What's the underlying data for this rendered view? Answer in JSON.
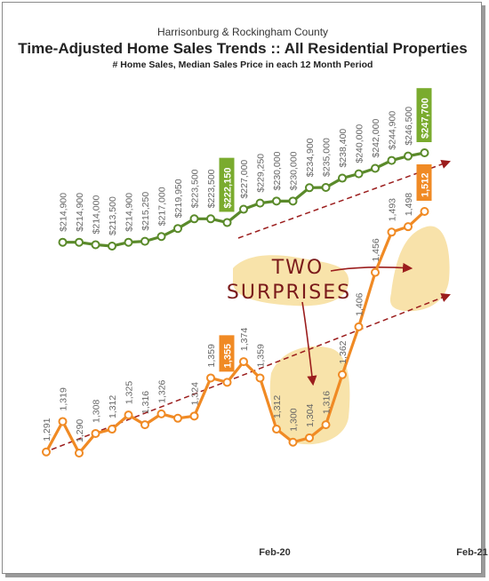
{
  "header": {
    "supertitle": "Harrisonburg & Rockingham County",
    "title": "Time-Adjusted Home Sales Trends  ::  All Residential Properties",
    "subtitle": "# Home Sales, Median Sales Price in each 12 Month Period"
  },
  "annotation": {
    "line1": "TWO",
    "line2": "SURPRISES"
  },
  "colors": {
    "price": "#5a8a2a",
    "price_badge": "#7aab2e",
    "sales": "#f08a24",
    "arrows": "#9b1d1d",
    "highlight": "#f6d98e"
  },
  "chart_data": {
    "type": "line",
    "x_labels": [
      {
        "index": 14,
        "label": "Feb-20"
      },
      {
        "index": 26,
        "label": "Feb-21"
      }
    ],
    "series": [
      {
        "metric": "median_sales_price",
        "values": [
          214900,
          214900,
          214000,
          213500,
          214900,
          215250,
          217000,
          219950,
          223500,
          223500,
          222150,
          227000,
          229250,
          230000,
          230000,
          234900,
          235000,
          238400,
          240000,
          242000,
          244900,
          246500,
          247700
        ],
        "labels": [
          "$214,900",
          "$214,900",
          "$214,000",
          "$213,500",
          "$214,900",
          "$215,250",
          "$217,000",
          "$219,950",
          "$223,500",
          "$223,500",
          "$222,150",
          "$227,000",
          "$229,250",
          "$230,000",
          "$230,000",
          "$234,900",
          "$235,000",
          "$238,400",
          "$240,000",
          "$242,000",
          "$244,900",
          "$246,500",
          "$247,700"
        ],
        "highlighted": [
          10,
          22
        ]
      },
      {
        "metric": "home_sales",
        "values": [
          1291,
          1319,
          1290,
          1308,
          1312,
          1325,
          1316,
          1326,
          1322,
          1324,
          1359,
          1355,
          1374,
          1359,
          1312,
          1300,
          1304,
          1316,
          1362,
          1406,
          1456,
          1493,
          1498,
          1512
        ],
        "labels": [
          "1,291",
          "1,319",
          "1,290",
          "1,308",
          "1,312",
          "1,325",
          "1,316",
          "1,326",
          "",
          "1,324",
          "1,359",
          "1,355",
          "1,374",
          "1,359",
          "1,312",
          "1,300",
          "1,304",
          "1,316",
          "1,362",
          "1,406",
          "1,456",
          "1,493",
          "1,498",
          "1,512"
        ],
        "highlighted": [
          11,
          23
        ]
      }
    ]
  }
}
